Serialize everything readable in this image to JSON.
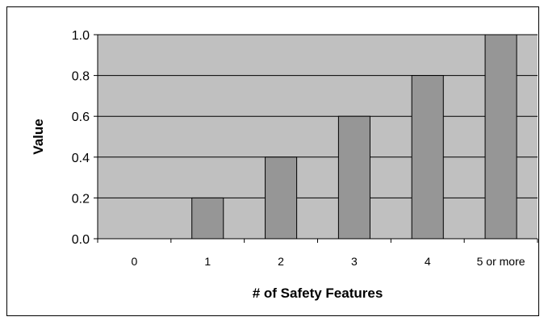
{
  "chart_data": {
    "type": "bar",
    "categories": [
      "0",
      "1",
      "2",
      "3",
      "4",
      "5 or more"
    ],
    "values": [
      0,
      0.2,
      0.4,
      0.6,
      0.8,
      1.0
    ],
    "xlabel": "# of Safety Features",
    "ylabel": "Value",
    "ylim": [
      0,
      1.0
    ],
    "yticks": [
      "0.0",
      "0.2",
      "0.4",
      "0.6",
      "0.8",
      "1.0"
    ],
    "grid": true,
    "colors": {
      "plot_area": "#c0c0c0",
      "bar_fill": "#969696",
      "bar_stroke": "#000000",
      "gridline": "#000000"
    }
  }
}
